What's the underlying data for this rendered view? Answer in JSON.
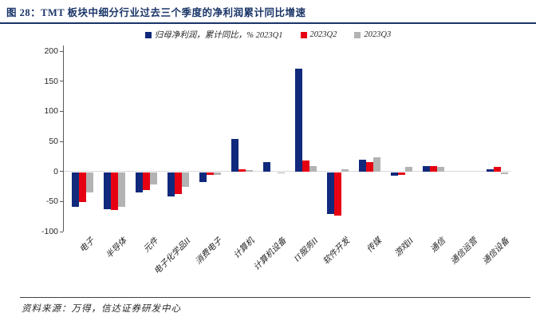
{
  "figure": {
    "title": "图 28：TMT 板块中细分行业过去三个季度的净利润累计同比增速",
    "source": "资料来源：万得，信达证券研发中心"
  },
  "legend": [
    {
      "label": "归母净利润，累计同比，% 2023Q1",
      "color": "#10297c"
    },
    {
      "label": "2023Q2",
      "color": "#e60012"
    },
    {
      "label": "2023Q3",
      "color": "#b3b3b3"
    }
  ],
  "chart_data": {
    "type": "bar",
    "title": "图 28：TMT 板块中细分行业过去三个季度的净利润累计同比增速",
    "xlabel": "",
    "ylabel": "归母净利润，累计同比，%",
    "ylim": [
      -100,
      200
    ],
    "yticks": [
      200,
      150,
      100,
      50,
      0,
      -50,
      -100
    ],
    "grid": false,
    "legend_position": "top",
    "categories": [
      "电子",
      "半导体",
      "元件",
      "电子化学品II",
      "消费电子",
      "计算机",
      "计算机设备",
      "IT服务II",
      "软件开发",
      "传媒",
      "游戏II",
      "通信",
      "通信运营",
      "通信设备"
    ],
    "series": [
      {
        "name": "2023Q1",
        "color": "#10297c",
        "values": [
          -57,
          -61,
          -33,
          -40,
          -17,
          54,
          16,
          171,
          -69,
          20,
          -6,
          9,
          0,
          3
        ]
      },
      {
        "name": "2023Q2",
        "color": "#e60012",
        "values": [
          -49,
          -63,
          -30,
          -36,
          -4,
          4,
          0,
          18,
          -72,
          15,
          -4,
          9,
          0,
          7
        ]
      },
      {
        "name": "2023Q3",
        "color": "#b3b3b3",
        "values": [
          -33,
          -57,
          -21,
          -24,
          -4,
          2,
          -2,
          9,
          4,
          23,
          8,
          7,
          0,
          -3
        ]
      }
    ]
  }
}
